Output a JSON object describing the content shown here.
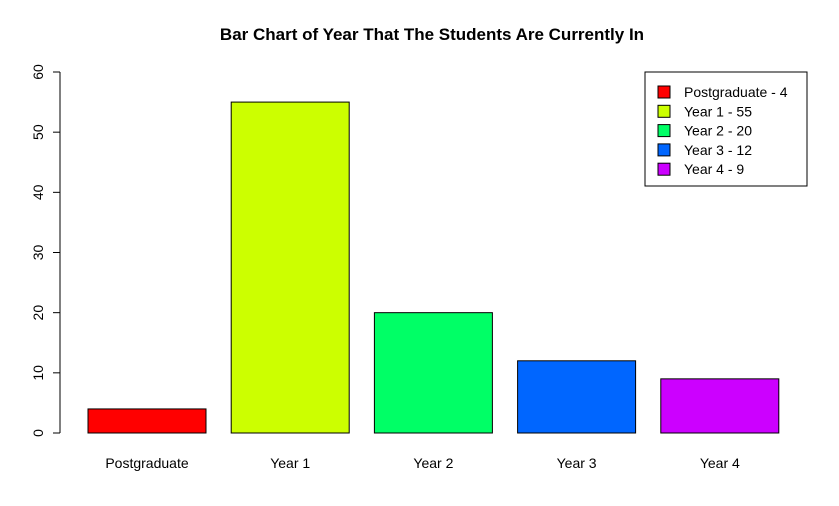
{
  "chart_data": {
    "type": "bar",
    "title": "Bar Chart of Year That The Students Are Currently In",
    "xlabel": "",
    "ylabel": "",
    "categories": [
      "Postgraduate",
      "Year 1",
      "Year 2",
      "Year 3",
      "Year 4"
    ],
    "values": [
      4,
      55,
      20,
      12,
      9
    ],
    "colors": [
      "#FF0000",
      "#CCFF00",
      "#00FF66",
      "#0066FF",
      "#CC00FF"
    ],
    "ylim": [
      0,
      60
    ],
    "yticks": [
      0,
      10,
      20,
      30,
      40,
      50,
      60
    ],
    "grid": false,
    "legend": {
      "placement": "top-right",
      "entries": [
        "Postgraduate - 4",
        "Year 1 - 55",
        "Year 2 - 20",
        "Year 3 - 12",
        "Year 4 - 9"
      ]
    }
  }
}
